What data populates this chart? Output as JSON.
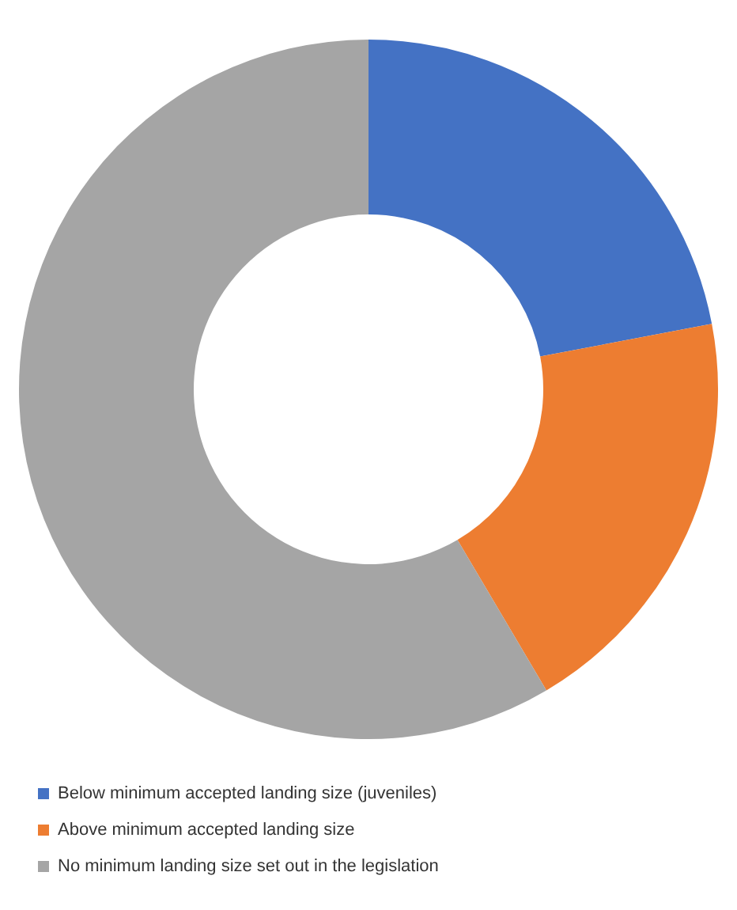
{
  "chart_data": {
    "type": "donut",
    "categories": [
      "Below minimum accepted landing size (juveniles)",
      "Above minimum accepted landing size",
      "No minimum landing size set out in the legislation"
    ],
    "values": [
      22,
      19.5,
      58.5
    ],
    "colors": [
      "#4472c4",
      "#ed7d31",
      "#a5a5a5"
    ],
    "legend": "bottom"
  }
}
